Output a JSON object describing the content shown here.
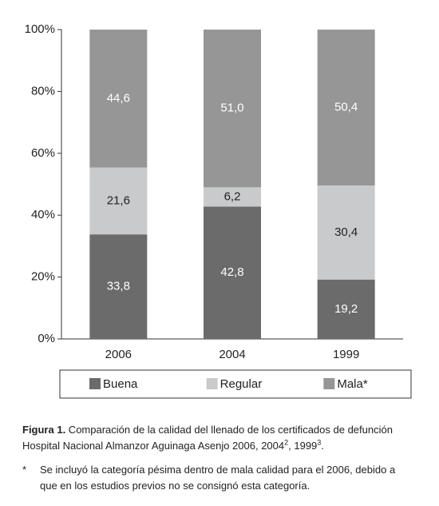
{
  "chart_data": {
    "type": "stacked_bar",
    "categories": [
      "2006",
      "2004",
      "1999"
    ],
    "series": [
      {
        "name": "Buena",
        "color": "#6b6b6b",
        "values": [
          33.8,
          42.8,
          19.2
        ],
        "value_labels": [
          "33,8",
          "42,8",
          "19,2"
        ]
      },
      {
        "name": "Regular",
        "color": "#c9cacb",
        "values": [
          21.6,
          6.2,
          30.4
        ],
        "value_labels": [
          "21,6",
          "6,2",
          "30,4"
        ]
      },
      {
        "name": "Mala*",
        "color": "#969696",
        "values": [
          44.6,
          51.0,
          50.4
        ],
        "value_labels": [
          "44,6",
          "51,0",
          "50,4"
        ]
      }
    ],
    "ylim": [
      0,
      100
    ],
    "yticks": [
      {
        "value": 0,
        "label": "0%"
      },
      {
        "value": 20,
        "label": "20%"
      },
      {
        "value": 40,
        "label": "40%"
      },
      {
        "value": 60,
        "label": "60%"
      },
      {
        "value": 80,
        "label": "80%"
      },
      {
        "value": 100,
        "label": "100%"
      }
    ],
    "legend": "bottom"
  },
  "caption": {
    "label": "Figura 1.",
    "text": " Comparación de la calidad del llenado de los certificados de defunción Hospital Nacional Almanzor Aguinaga Asenjo 2006, 2004",
    "sup1": "2",
    "text2": ", 1999",
    "sup2": "3",
    "end": "."
  },
  "footnote": {
    "mark": "*",
    "text": "Se incluyó la categoría pésima dentro de mala calidad para el 2006, debido a que en los estudios previos no se consignó esta categoría."
  }
}
